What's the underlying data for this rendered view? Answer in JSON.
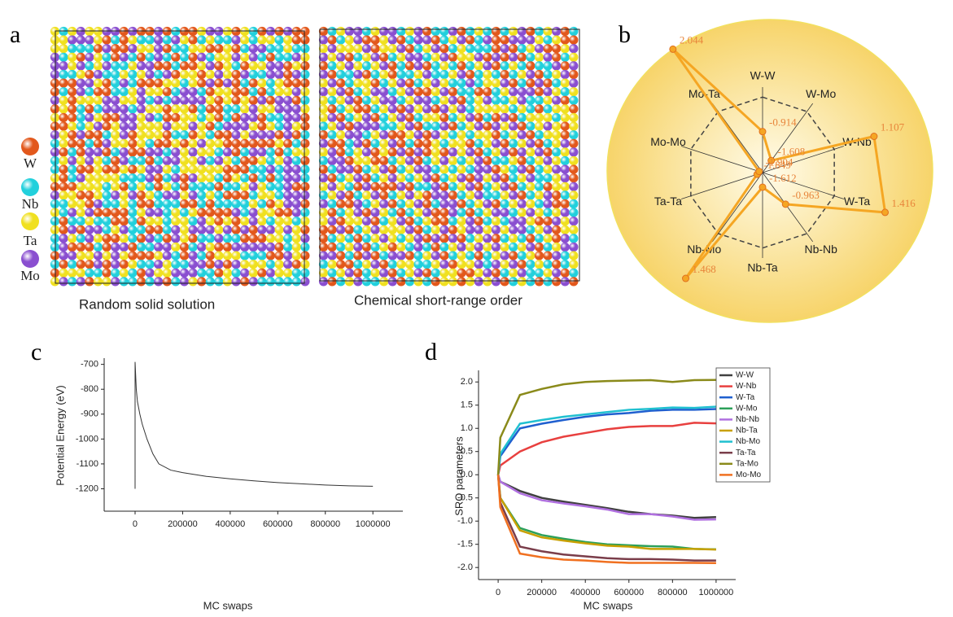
{
  "panel_labels": [
    "a",
    "b",
    "c",
    "d"
  ],
  "atoms": {
    "legend": [
      {
        "name": "W",
        "color": "#e2581c"
      },
      {
        "name": "Nb",
        "color": "#22d0dc"
      },
      {
        "name": "Ta",
        "color": "#f0e020"
      },
      {
        "name": "Mo",
        "color": "#8a4fd0"
      }
    ],
    "captions": [
      "Random solid solution",
      "Chemical short-range order"
    ]
  },
  "chart_data": [
    {
      "type": "radar",
      "categories": [
        "W-W",
        "W-Mo",
        "W-Nb",
        "W-Ta",
        "Nb-Nb",
        "Nb-Ta",
        "Nb-Mo",
        "Ta-Ta",
        "Mo-Mo",
        "Mo-Ta"
      ],
      "values": [
        -0.914,
        -1.608,
        1.107,
        1.416,
        -0.963,
        -1.612,
        1.468,
        -1.849,
        -1.904,
        2.044
      ],
      "rlim": [
        -2,
        2.1
      ],
      "color": "#f5a623"
    },
    {
      "type": "line",
      "x_label": "MC swaps",
      "y_label": "Potential Energy (eV)",
      "x": [
        0,
        0,
        5000,
        10000,
        20000,
        30000,
        50000,
        75000,
        100000,
        150000,
        200000,
        300000,
        400000,
        500000,
        600000,
        700000,
        800000,
        900000,
        1000000
      ],
      "values": [
        -1200,
        -690,
        -800,
        -850,
        -900,
        -940,
        -1000,
        -1060,
        -1100,
        -1125,
        -1135,
        -1150,
        -1160,
        -1168,
        -1175,
        -1180,
        -1185,
        -1188,
        -1190
      ],
      "color": "#333333",
      "xlim": [
        -130000,
        1126000
      ],
      "xticks": [
        0,
        200000,
        400000,
        600000,
        800000,
        1000000
      ],
      "ylim": [
        -1290,
        -675
      ],
      "yticks": [
        -700,
        -800,
        -900,
        -1000,
        -1100,
        -1200
      ]
    },
    {
      "type": "line",
      "x_label": "MC swaps",
      "y_label": "SRO parameters",
      "x": [
        0,
        10000,
        100000,
        200000,
        300000,
        400000,
        500000,
        600000,
        700000,
        800000,
        900000,
        1000000
      ],
      "series": [
        {
          "name": "W-W",
          "color": "#404040",
          "values": [
            0,
            -0.15,
            -0.35,
            -0.5,
            -0.58,
            -0.65,
            -0.72,
            -0.8,
            -0.85,
            -0.88,
            -0.93,
            -0.914
          ]
        },
        {
          "name": "W-Nb",
          "color": "#e8403f",
          "values": [
            0,
            0.2,
            0.5,
            0.7,
            0.82,
            0.9,
            0.98,
            1.03,
            1.05,
            1.05,
            1.12,
            1.107
          ]
        },
        {
          "name": "W-Ta",
          "color": "#1f5fcf",
          "values": [
            0,
            0.4,
            1.0,
            1.1,
            1.18,
            1.25,
            1.3,
            1.33,
            1.38,
            1.4,
            1.4,
            1.416
          ]
        },
        {
          "name": "W-Mo",
          "color": "#2ca05a",
          "values": [
            0,
            -0.5,
            -1.15,
            -1.3,
            -1.38,
            -1.45,
            -1.5,
            -1.52,
            -1.54,
            -1.55,
            -1.6,
            -1.608
          ]
        },
        {
          "name": "Nb-Nb",
          "color": "#b070e0",
          "values": [
            0,
            -0.15,
            -0.4,
            -0.55,
            -0.62,
            -0.68,
            -0.75,
            -0.85,
            -0.85,
            -0.9,
            -0.97,
            -0.963
          ]
        },
        {
          "name": "Nb-Ta",
          "color": "#c8a000",
          "values": [
            0,
            -0.5,
            -1.2,
            -1.35,
            -1.42,
            -1.48,
            -1.53,
            -1.55,
            -1.6,
            -1.6,
            -1.6,
            -1.612
          ]
        },
        {
          "name": "Nb-Mo",
          "color": "#20c0d0",
          "values": [
            0,
            0.45,
            1.1,
            1.18,
            1.25,
            1.3,
            1.35,
            1.4,
            1.42,
            1.45,
            1.44,
            1.468
          ]
        },
        {
          "name": "Ta-Ta",
          "color": "#7a3d4a",
          "values": [
            0,
            -0.6,
            -1.55,
            -1.65,
            -1.72,
            -1.76,
            -1.8,
            -1.82,
            -1.82,
            -1.83,
            -1.85,
            -1.849
          ]
        },
        {
          "name": "Ta-Mo",
          "color": "#8a8a1a",
          "values": [
            0,
            0.8,
            1.72,
            1.85,
            1.95,
            2.0,
            2.02,
            2.03,
            2.04,
            2.0,
            2.04,
            2.044
          ]
        },
        {
          "name": "Mo-Mo",
          "color": "#f07020",
          "values": [
            0,
            -0.7,
            -1.7,
            -1.78,
            -1.83,
            -1.85,
            -1.88,
            -1.9,
            -1.9,
            -1.9,
            -1.9,
            -1.904
          ]
        }
      ],
      "xlim": [
        -90000,
        1090000
      ],
      "xticks": [
        0,
        200000,
        400000,
        600000,
        800000,
        1000000
      ],
      "ylim": [
        -2.26,
        2.25
      ],
      "yticks": [
        {
          "value": -2,
          "label": "-2.0"
        },
        -1.5,
        {
          "value": -1,
          "label": "-1.0"
        },
        -0.5,
        {
          "value": 0,
          "label": "0.0"
        },
        0.5,
        {
          "value": 1,
          "label": "1.0"
        },
        1.5,
        {
          "value": 2,
          "label": "2.0"
        }
      ]
    }
  ]
}
